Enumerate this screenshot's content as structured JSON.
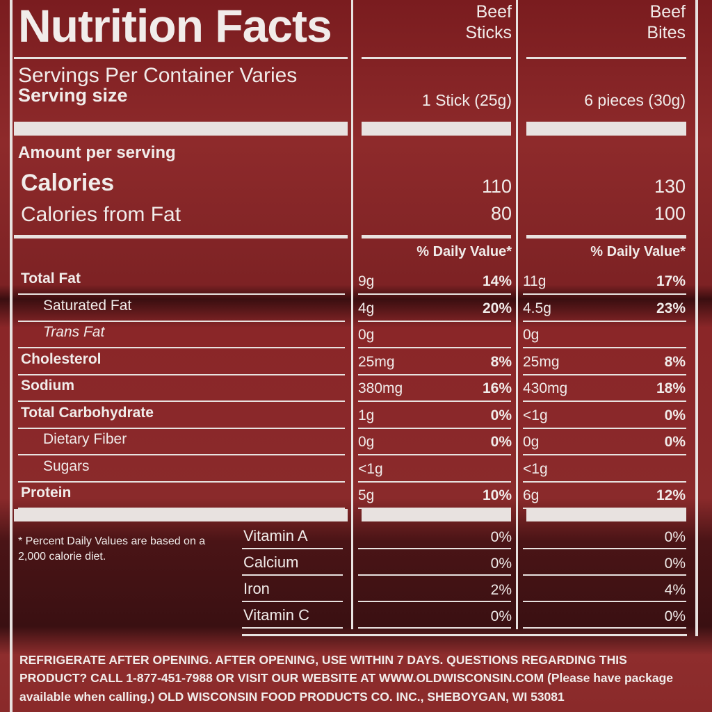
{
  "header": {
    "title": "Nutrition Facts",
    "columns": [
      "Beef Sticks",
      "Beef Bites"
    ]
  },
  "servings": "Servings Per Container Varies",
  "serving_size": {
    "label": "Serving size",
    "values": [
      "1 Stick (25g)",
      "6 pieces (30g)"
    ]
  },
  "amount_per_serving": "Amount per serving",
  "calories": {
    "label": "Calories",
    "values": [
      "110",
      "130"
    ]
  },
  "calories_from_fat": {
    "label": "Calories from Fat",
    "values": [
      "80",
      "100"
    ]
  },
  "daily_value_header": [
    "% Daily Value*",
    "% Daily Value*"
  ],
  "nutrients": [
    {
      "label": "Total Fat",
      "values": [
        {
          "amount": "9g",
          "dv": "14%"
        },
        {
          "amount": "11g",
          "dv": "17%"
        }
      ]
    },
    {
      "label": "Saturated Fat",
      "values": [
        {
          "amount": "4g",
          "dv": "20%"
        },
        {
          "amount": "4.5g",
          "dv": "23%"
        }
      ]
    },
    {
      "label": "Trans Fat",
      "values": [
        {
          "amount": "0g"
        },
        {
          "amount": "0g"
        }
      ]
    },
    {
      "label": "Cholesterol",
      "values": [
        {
          "amount": "25mg",
          "dv": "8%"
        },
        {
          "amount": "25mg",
          "dv": "8%"
        }
      ]
    },
    {
      "label": "Sodium",
      "values": [
        {
          "amount": "380mg",
          "dv": "16%"
        },
        {
          "amount": "430mg",
          "dv": "18%"
        }
      ]
    },
    {
      "label": "Total Carbohydrate",
      "values": [
        {
          "amount": "1g",
          "dv": "0%"
        },
        {
          "amount": "<1g",
          "dv": "0%"
        }
      ]
    },
    {
      "label": "Dietary Fiber",
      "values": [
        {
          "amount": "0g",
          "dv": "0%"
        },
        {
          "amount": "0g",
          "dv": "0%"
        }
      ]
    },
    {
      "label": "Sugars",
      "values": [
        {
          "amount": "<1g"
        },
        {
          "amount": "<1g"
        }
      ]
    },
    {
      "label": "Protein",
      "values": [
        {
          "amount": "5g",
          "dv": "10%"
        },
        {
          "amount": "6g",
          "dv": "12%"
        }
      ]
    }
  ],
  "vitamins": [
    {
      "label": "Vitamin A",
      "values": [
        "0%",
        "0%"
      ]
    },
    {
      "label": "Calcium",
      "values": [
        "0%",
        "0%"
      ]
    },
    {
      "label": "Iron",
      "values": [
        "2%",
        "4%"
      ]
    },
    {
      "label": "Vitamin C",
      "values": [
        "0%",
        "0%"
      ]
    }
  ],
  "footnote": "* Percent Daily Values are based on a 2,000 calorie diet.",
  "notice": "REFRIGERATE AFTER OPENING. AFTER OPENING, USE WITHIN 7 DAYS. QUESTIONS REGARDING THIS PRODUCT? CALL 1-877-451-7988 OR VISIT OUR WEBSITE AT WWW.OLDWISCONSIN.COM (Please have package available when calling.) OLD WISCONSIN FOOD PRODUCTS CO. INC., SHEBOYGAN, WI 53081"
}
